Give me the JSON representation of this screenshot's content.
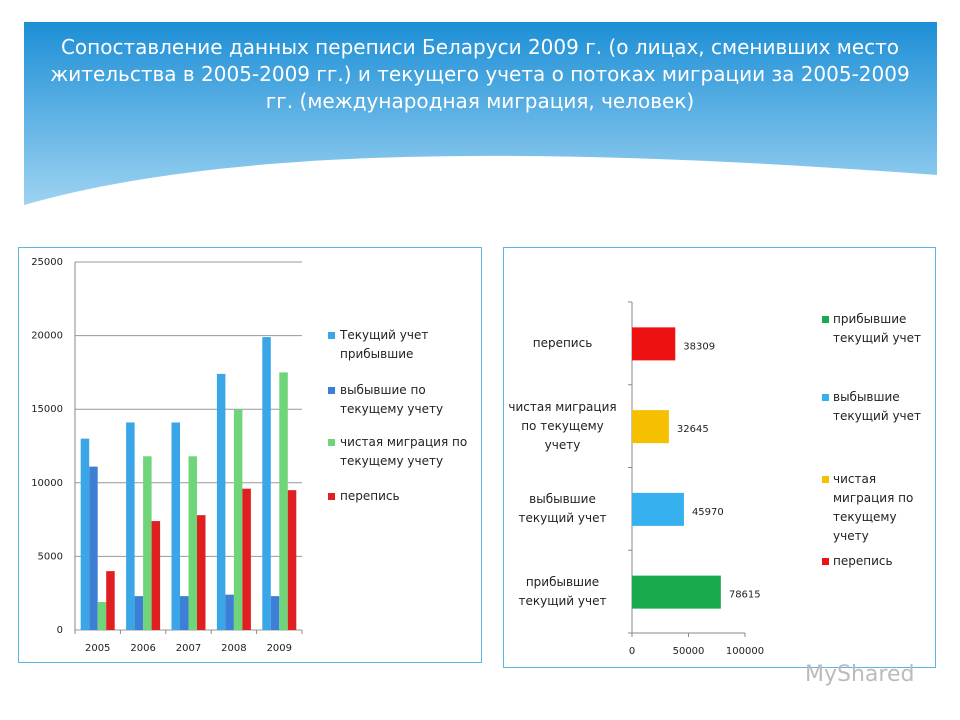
{
  "title": "Сопоставление данных переписи Беларуси 2009 г. (о лицах, сменивших место жительства в 2005-2009 гг.) и текущего учета о потоках миграции за 2005-2009 гг. (международная миграция, человек)",
  "watermark": "MyShared",
  "chart_data": [
    {
      "type": "bar",
      "categories": [
        "2005",
        "2006",
        "2007",
        "2008",
        "2009"
      ],
      "series": [
        {
          "name": "Текущий учет прибывшие",
          "color": "#3aa6e8",
          "values": [
            13000,
            14100,
            14100,
            17400,
            19900
          ]
        },
        {
          "name": "выбывшие по текущему учету",
          "color": "#3d7fd4",
          "values": [
            11100,
            2300,
            2300,
            2400,
            2300
          ]
        },
        {
          "name": "чистая миграция по текущему учету",
          "color": "#6fd47a",
          "values": [
            1900,
            11800,
            11800,
            15000,
            17500
          ]
        },
        {
          "name": "перепись",
          "color": "#e02020",
          "values": [
            4000,
            7400,
            7800,
            9600,
            9500
          ]
        }
      ],
      "ylim": [
        0,
        25000
      ],
      "yticks": [
        0,
        5000,
        10000,
        15000,
        20000,
        25000
      ],
      "grid": true
    },
    {
      "type": "barh",
      "categories": [
        "прибывшие текущий учет",
        "выбывшие текущий учет",
        "чистая миграция по текущему учету",
        "перепись"
      ],
      "values": [
        78615,
        45970,
        32645,
        38309
      ],
      "colors": [
        "#1aaa4e",
        "#36b0ee",
        "#f5c000",
        "#ee1111"
      ],
      "xlim": [
        0,
        100000
      ],
      "xticks": [
        0,
        50000,
        100000
      ],
      "grid": false
    }
  ]
}
